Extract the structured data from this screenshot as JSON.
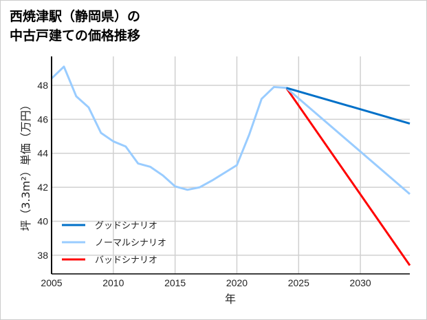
{
  "chart_data": {
    "type": "line",
    "title": [
      "西焼津駅（静岡県）の",
      "中古戸建ての価格推移"
    ],
    "xlabel": "年",
    "ylabel": "坪（3.3m²）単価（万円）",
    "xlim": [
      2005,
      2034
    ],
    "ylim": [
      36.9,
      49.7
    ],
    "xticks": [
      2005,
      2010,
      2015,
      2020,
      2025,
      2030
    ],
    "yticks": [
      38,
      40,
      42,
      44,
      46,
      48
    ],
    "grid": true,
    "legend_position": "bottom-left",
    "history": {
      "x": [
        2005,
        2006,
        2007,
        2008,
        2009,
        2010,
        2011,
        2012,
        2013,
        2014,
        2015,
        2016,
        2017,
        2018,
        2019,
        2020,
        2021,
        2022,
        2023,
        2024
      ],
      "y": [
        48.4,
        49.1,
        47.35,
        46.7,
        45.2,
        44.7,
        44.4,
        43.4,
        43.2,
        42.7,
        42.05,
        41.85,
        42.0,
        42.4,
        42.85,
        43.3,
        45.1,
        47.2,
        47.9,
        47.85
      ],
      "color": "#99ccff"
    },
    "series": [
      {
        "name": "グッドシナリオ",
        "x": [
          2024,
          2034
        ],
        "y": [
          47.85,
          45.75
        ],
        "color": "#0070c8"
      },
      {
        "name": "ノーマルシナリオ",
        "x": [
          2024,
          2034
        ],
        "y": [
          47.85,
          41.6
        ],
        "color": "#99ccff"
      },
      {
        "name": "バッドシナリオ",
        "x": [
          2024,
          2034
        ],
        "y": [
          47.85,
          37.4
        ],
        "color": "#ff0000"
      }
    ]
  }
}
